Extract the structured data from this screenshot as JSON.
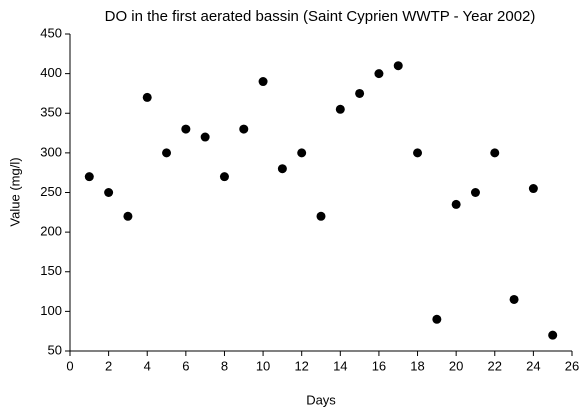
{
  "chart_data": {
    "type": "scatter",
    "title": "DO in the first aerated bassin (Saint Cyprien WWTP - Year 2002)",
    "x_label": "Days",
    "y_label": "Value (mg/l)",
    "x": [
      1,
      2,
      3,
      4,
      5,
      6,
      7,
      8,
      9,
      10,
      11,
      12,
      13,
      14,
      15,
      16,
      17,
      18,
      19,
      20,
      21,
      22,
      23,
      24,
      25
    ],
    "values": [
      270,
      250,
      220,
      370,
      300,
      330,
      320,
      270,
      330,
      390,
      280,
      300,
      220,
      355,
      375,
      400,
      410,
      300,
      90,
      235,
      250,
      300,
      115,
      255,
      70
    ],
    "color": "#000000",
    "xlim": [
      0,
      26
    ],
    "xticks": [
      0,
      2,
      4,
      6,
      8,
      10,
      12,
      14,
      16,
      18,
      20,
      22,
      24,
      26
    ],
    "ylim": [
      50,
      450
    ],
    "yticks": [
      50,
      100,
      150,
      200,
      250,
      300,
      350,
      400,
      450
    ],
    "grid": false
  }
}
